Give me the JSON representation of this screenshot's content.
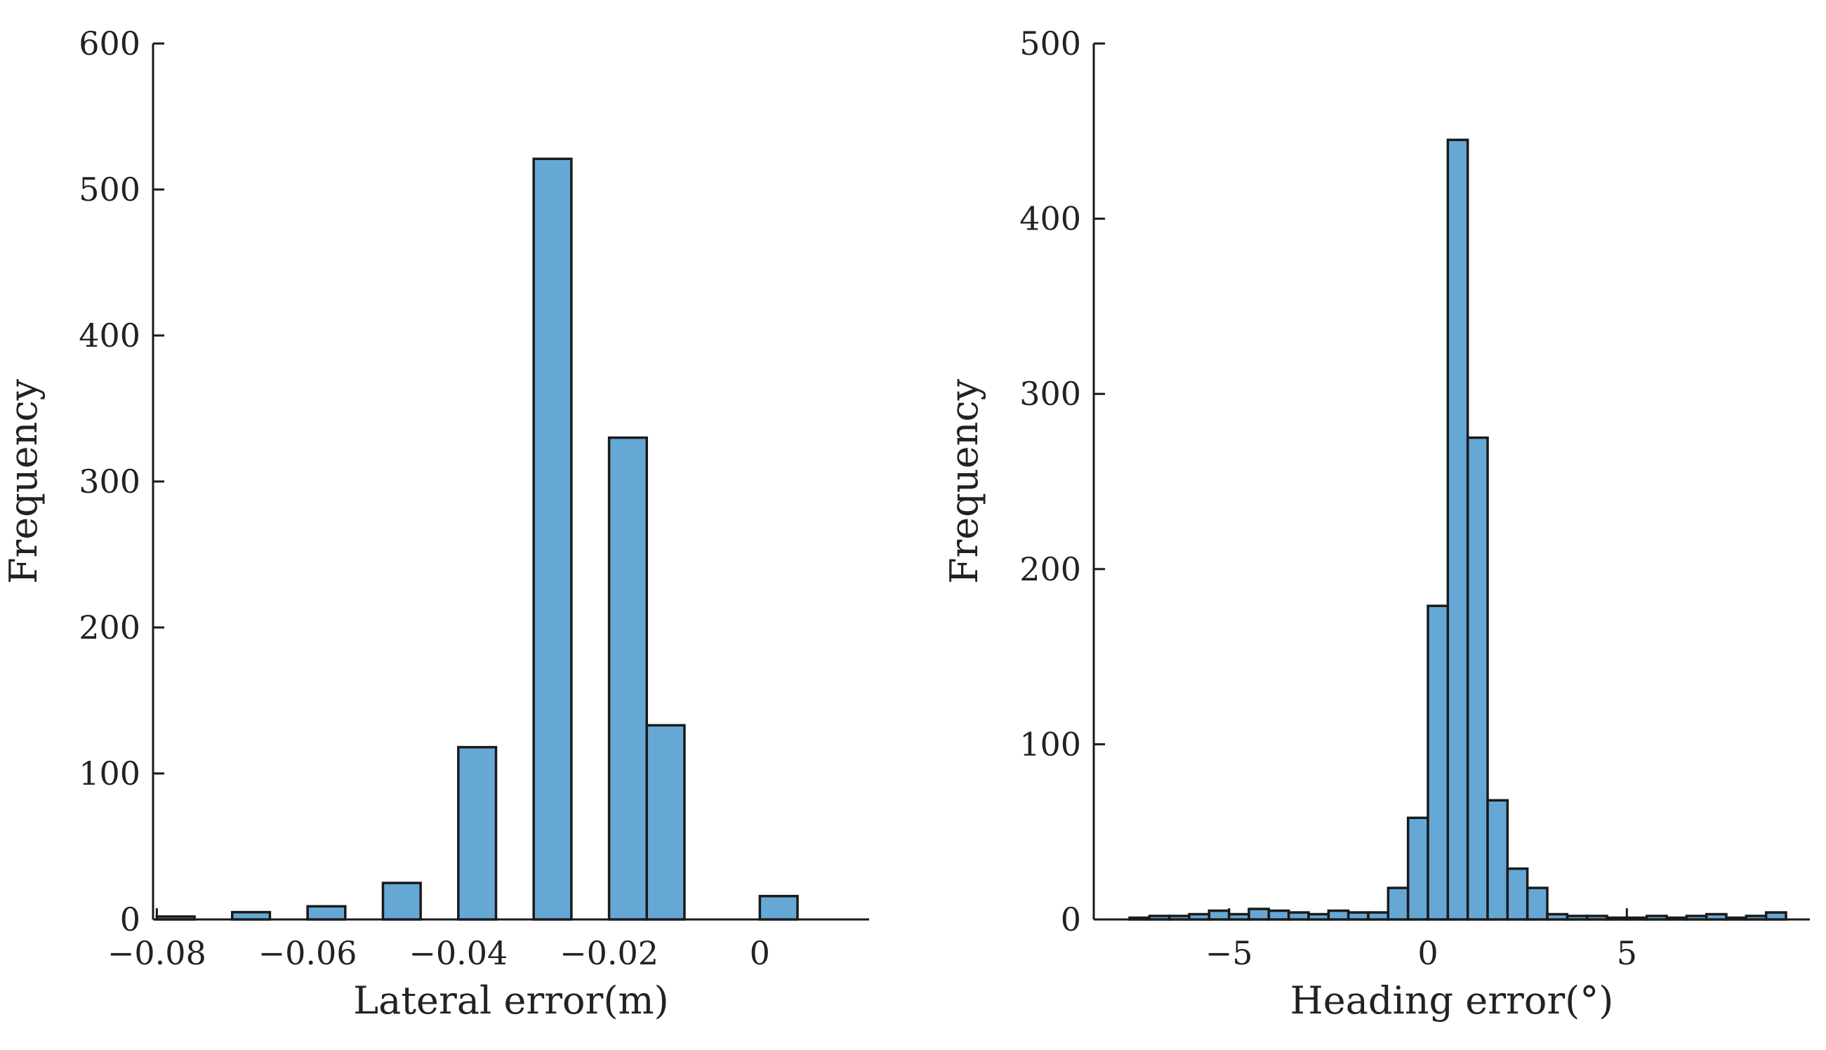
{
  "colors": {
    "bar_fill": "#65a8d6",
    "bar_edge": "#1a1a1a",
    "axis": "#1a1a1a",
    "text": "#222222"
  },
  "chart_data": [
    {
      "type": "bar",
      "subtype": "histogram",
      "xlabel": "Lateral error(m)",
      "ylabel": "Frequency",
      "xlim": [
        -0.0805,
        0.0145
      ],
      "ylim": [
        0,
        600
      ],
      "xticks": [
        -0.08,
        -0.06,
        -0.04,
        -0.02,
        0
      ],
      "xtick_labels": [
        "−0.08",
        "−0.06",
        "−0.04",
        "−0.02",
        "0"
      ],
      "yticks": [
        0,
        100,
        200,
        300,
        400,
        500,
        600
      ],
      "ytick_labels": [
        "0",
        "100",
        "200",
        "300",
        "400",
        "500",
        "600"
      ],
      "grid": false,
      "bins": [
        {
          "x0": -0.08,
          "x1": -0.07,
          "value": 2
        },
        {
          "x0": -0.07,
          "x1": -0.06,
          "value": 5
        },
        {
          "x0": -0.06,
          "x1": -0.05,
          "value": 9
        },
        {
          "x0": -0.05,
          "x1": -0.04,
          "value": 25
        },
        {
          "x0": -0.04,
          "x1": -0.03,
          "value": 118
        },
        {
          "x0": -0.03,
          "x1": -0.02,
          "value": 521
        },
        {
          "x0": -0.02,
          "x1": -0.01,
          "value": 330
        },
        {
          "x0": -0.01,
          "x1": 0.0,
          "value": 133
        },
        {
          "x0": 0.0,
          "x1": 0.01,
          "value": 16
        }
      ],
      "drawn_bins": [
        {
          "x0": -0.08,
          "x1": -0.075,
          "value": 2
        },
        {
          "x0": -0.07,
          "x1": -0.065,
          "value": 5
        },
        {
          "x0": -0.06,
          "x1": -0.055,
          "value": 9
        },
        {
          "x0": -0.05,
          "x1": -0.045,
          "value": 25
        },
        {
          "x0": -0.04,
          "x1": -0.035,
          "value": 118
        },
        {
          "x0": -0.03,
          "x1": -0.025,
          "value": 521
        },
        {
          "x0": -0.02,
          "x1": -0.015,
          "value": 330
        },
        {
          "x0": -0.015,
          "x1": -0.01,
          "value": 133
        },
        {
          "x0": 0.0,
          "x1": 0.005,
          "value": 16
        }
      ]
    },
    {
      "type": "bar",
      "subtype": "histogram",
      "xlabel": "Heading error(°)",
      "ylabel": "Frequency",
      "xlim": [
        -8.4,
        9.6
      ],
      "ylim": [
        0,
        500
      ],
      "xticks": [
        -5,
        0,
        5
      ],
      "xtick_labels": [
        "−5",
        "0",
        "5"
      ],
      "yticks": [
        0,
        100,
        200,
        300,
        400,
        500
      ],
      "ytick_labels": [
        "0",
        "100",
        "200",
        "300",
        "400",
        "500"
      ],
      "grid": false,
      "bin_width": 0.5,
      "bins": [
        {
          "x0": -7.5,
          "value": 1
        },
        {
          "x0": -7.0,
          "value": 2
        },
        {
          "x0": -6.5,
          "value": 2
        },
        {
          "x0": -6.0,
          "value": 3
        },
        {
          "x0": -5.5,
          "value": 5
        },
        {
          "x0": -5.0,
          "value": 3
        },
        {
          "x0": -4.5,
          "value": 6
        },
        {
          "x0": -4.0,
          "value": 5
        },
        {
          "x0": -3.5,
          "value": 4
        },
        {
          "x0": -3.0,
          "value": 3
        },
        {
          "x0": -2.5,
          "value": 5
        },
        {
          "x0": -2.0,
          "value": 4
        },
        {
          "x0": -1.5,
          "value": 4
        },
        {
          "x0": -1.0,
          "value": 18
        },
        {
          "x0": -0.5,
          "value": 58
        },
        {
          "x0": 0.0,
          "value": 179
        },
        {
          "x0": 0.5,
          "value": 445
        },
        {
          "x0": 1.0,
          "value": 275
        },
        {
          "x0": 1.5,
          "value": 68
        },
        {
          "x0": 2.0,
          "value": 29
        },
        {
          "x0": 2.5,
          "value": 18
        },
        {
          "x0": 3.0,
          "value": 3
        },
        {
          "x0": 3.5,
          "value": 2
        },
        {
          "x0": 4.0,
          "value": 2
        },
        {
          "x0": 4.5,
          "value": 1
        },
        {
          "x0": 5.0,
          "value": 1
        },
        {
          "x0": 5.5,
          "value": 2
        },
        {
          "x0": 6.0,
          "value": 1
        },
        {
          "x0": 6.5,
          "value": 2
        },
        {
          "x0": 7.0,
          "value": 3
        },
        {
          "x0": 7.5,
          "value": 1
        },
        {
          "x0": 8.0,
          "value": 2
        },
        {
          "x0": 8.5,
          "value": 4
        }
      ]
    }
  ]
}
